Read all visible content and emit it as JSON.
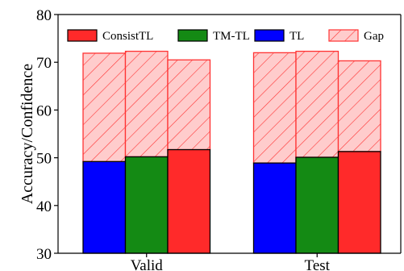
{
  "chart_data": {
    "type": "bar",
    "title": "",
    "xlabel": "",
    "ylabel": "Accuracy/Confidence",
    "ylim": [
      30,
      80
    ],
    "yticks": [
      "30",
      "40",
      "50",
      "60",
      "70",
      "80"
    ],
    "categories": [
      "Valid",
      "Test"
    ],
    "series": [
      {
        "name": "TL",
        "color": "#0000ff",
        "accuracy": [
          49.2,
          48.9
        ],
        "confidence": [
          71.9,
          72.0
        ]
      },
      {
        "name": "TM-TL",
        "color": "#148a14",
        "accuracy": [
          50.2,
          50.1
        ],
        "confidence": [
          72.3,
          72.3
        ]
      },
      {
        "name": "ConsistTL",
        "color": "#ff2a2a",
        "accuracy": [
          51.7,
          51.3
        ],
        "confidence": [
          70.5,
          70.3
        ]
      }
    ],
    "gap": {
      "name": "Gap",
      "fill": "#ffcccc",
      "hatch": "#ff3333"
    },
    "legend": {
      "position": "top",
      "entries": [
        "ConsistTL",
        "TM-TL",
        "TL",
        "Gap"
      ]
    },
    "grid": false
  }
}
